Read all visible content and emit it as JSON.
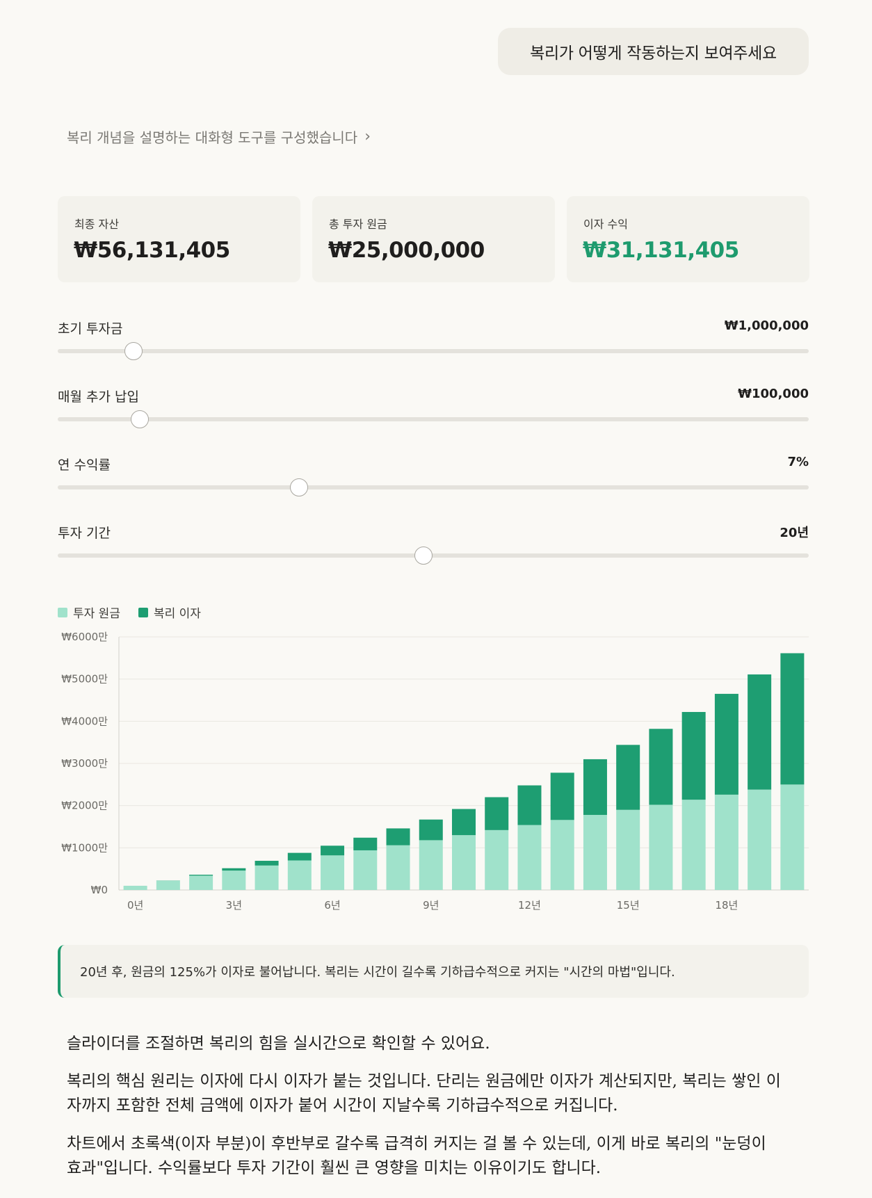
{
  "user_message": "복리가 어떻게 작동하는지 보여주세요",
  "thinking_summary": "복리 개념을 설명하는 대화형 도구를 구성했습니다",
  "thinking_chevron": "›",
  "cards": [
    {
      "label": "최종 자산",
      "value": "₩56,131,405"
    },
    {
      "label": "총 투자 원금",
      "value": "₩25,000,000"
    },
    {
      "label": "이자 수익",
      "value": "₩31,131,405"
    }
  ],
  "sliders": [
    {
      "label": "초기 투자금",
      "value": "₩1,000,000",
      "position": 0.101
    },
    {
      "label": "매월 추가 납입",
      "value": "₩100,000",
      "position": 0.109
    },
    {
      "label": "연 수익률",
      "value": "7%",
      "position": 0.321
    },
    {
      "label": "투자 기간",
      "value": "20년",
      "position": 0.487
    }
  ],
  "legend": {
    "principal": "투자 원금",
    "interest": "복리 이자"
  },
  "colors": {
    "principal": "#a0e2cb",
    "interest": "#1e9e72",
    "accent": "#1e9b6e"
  },
  "chart_data": {
    "type": "bar",
    "stacked": true,
    "categories": [
      "0년",
      "1년",
      "2년",
      "3년",
      "4년",
      "5년",
      "6년",
      "7년",
      "8년",
      "9년",
      "10년",
      "11년",
      "12년",
      "13년",
      "14년",
      "15년",
      "16년",
      "17년",
      "18년",
      "19년",
      "20년"
    ],
    "x_tick_labels": [
      "0년",
      "",
      "",
      "3년",
      "",
      "",
      "6년",
      "",
      "",
      "9년",
      "",
      "",
      "12년",
      "",
      "",
      "15년",
      "",
      "",
      "18년",
      "",
      ""
    ],
    "series": [
      {
        "name": "투자 원금",
        "values": [
          100,
          220,
          340,
          460,
          580,
          700,
          820,
          940,
          1060,
          1180,
          1300,
          1420,
          1540,
          1660,
          1780,
          1900,
          2020,
          2140,
          2260,
          2380,
          2500
        ]
      },
      {
        "name": "복리 이자",
        "values": [
          0,
          4,
          22,
          56,
          112,
          180,
          230,
          300,
          400,
          490,
          620,
          780,
          940,
          1120,
          1320,
          1540,
          1800,
          2080,
          2390,
          2730,
          3113
        ]
      }
    ],
    "y_tick_labels": [
      "₩0",
      "₩1000만",
      "₩2000만",
      "₩3000만",
      "₩4000만",
      "₩5000만",
      "₩6000만"
    ],
    "unit": "만원",
    "ylim": [
      0,
      6000
    ],
    "grid": true
  },
  "insight": "20년 후, 원금의 125%가 이자로 불어납니다. 복리는 시간이 길수록 기하급수적으로 커지는 \"시간의 마법\"입니다.",
  "paragraphs": [
    "슬라이더를 조절하면 복리의 힘을 실시간으로 확인할 수 있어요.",
    "복리의 핵심 원리는 이자에 다시 이자가 붙는 것입니다. 단리는 원금에만 이자가 계산되지만, 복리는 쌓인 이자까지 포함한 전체 금액에 이자가 붙어 시간이 지날수록 기하급수적으로 커집니다.",
    "차트에서 초록색(이자 부분)이 후반부로 갈수록 급격히 커지는 걸 볼 수 있는데, 이게 바로 복리의 \"눈덩이 효과\"입니다. 수익률보다 투자 기간이 훨씬 큰 영향을 미치는 이유이기도 합니다."
  ]
}
